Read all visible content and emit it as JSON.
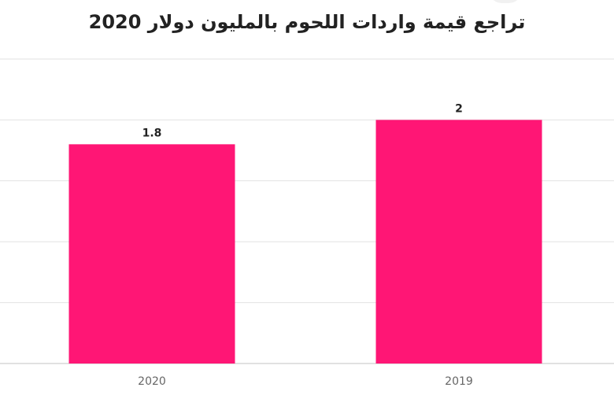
{
  "chart_data": {
    "type": "bar",
    "title": "تراجع قيمة واردات اللحوم بالمليون دولار 2020",
    "categories": [
      "2020",
      "2019"
    ],
    "values": [
      1.8,
      2
    ],
    "value_labels": [
      "1.8",
      "2"
    ],
    "xlabel": "",
    "ylabel": "",
    "ylim": [
      0,
      2.5
    ],
    "grid": true,
    "legend": "none",
    "bar_color": "#ff1675"
  }
}
